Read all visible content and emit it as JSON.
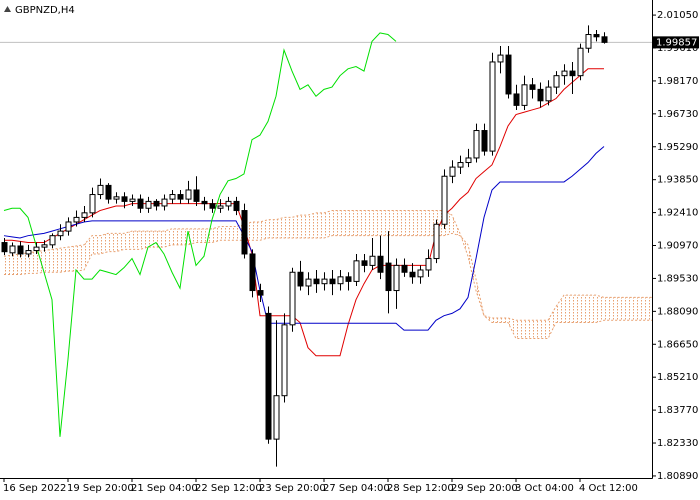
{
  "chart_data": {
    "type": "candlestick",
    "title": "GBPNZD,H4",
    "up_color": "#ffffff",
    "down_color": "#000000",
    "open": [
      1.911,
      1.9065,
      1.9095,
      1.906,
      1.9075,
      1.909,
      1.91,
      1.914,
      1.916,
      1.92,
      1.922,
      1.924,
      1.932,
      1.936,
      1.93,
      1.931,
      1.929,
      1.93,
      1.926,
      1.929,
      1.927,
      1.93,
      1.932,
      1.93,
      1.934,
      1.929,
      1.928,
      1.926,
      1.927,
      1.929,
      1.925,
      1.906,
      1.89,
      1.88,
      1.825,
      1.844,
      1.875,
      1.898,
      1.892,
      1.895,
      1.893,
      1.895,
      1.893,
      1.896,
      1.894,
      1.903,
      1.901,
      1.905,
      1.902,
      1.89,
      1.901,
      1.898,
      1.896,
      1.899,
      1.904,
      1.919,
      1.94,
      1.944,
      1.946,
      1.948,
      1.96,
      1.951,
      1.99,
      1.993,
      1.976,
      1.971,
      1.98,
      1.978,
      1.973,
      1.979,
      1.984,
      1.986,
      1.984,
      1.996,
      2.002,
      2.001
    ],
    "high": [
      1.913,
      1.911,
      1.9115,
      1.91,
      1.911,
      1.912,
      1.915,
      1.919,
      1.922,
      1.925,
      1.927,
      1.935,
      1.939,
      1.937,
      1.933,
      1.933,
      1.932,
      1.932,
      1.931,
      1.93,
      1.932,
      1.934,
      1.934,
      1.938,
      1.94,
      1.931,
      1.93,
      1.93,
      1.931,
      1.931,
      1.928,
      1.908,
      1.893,
      1.883,
      1.877,
      1.88,
      1.9,
      1.903,
      1.898,
      1.899,
      1.898,
      1.899,
      1.899,
      1.898,
      1.906,
      1.906,
      1.913,
      1.914,
      1.916,
      1.904,
      1.904,
      1.902,
      1.901,
      1.908,
      1.921,
      1.943,
      1.947,
      1.949,
      1.952,
      1.963,
      1.963,
      1.994,
      1.997,
      1.997,
      1.98,
      1.984,
      1.983,
      1.981,
      1.982,
      1.986,
      1.989,
      1.99,
      1.998,
      2.006,
      2.004,
      2.003
    ],
    "low": [
      1.9055,
      1.905,
      1.9045,
      1.9045,
      1.906,
      1.907,
      1.9085,
      1.912,
      1.914,
      1.918,
      1.92,
      1.922,
      1.93,
      1.928,
      1.928,
      1.926,
      1.927,
      1.924,
      1.924,
      1.925,
      1.925,
      1.928,
      1.928,
      1.928,
      1.927,
      1.925,
      1.924,
      1.924,
      1.925,
      1.923,
      1.904,
      1.887,
      1.885,
      1.823,
      1.813,
      1.841,
      1.872,
      1.89,
      1.888,
      1.889,
      1.89,
      1.888,
      1.89,
      1.89,
      1.892,
      1.898,
      1.899,
      1.895,
      1.88,
      1.882,
      1.896,
      1.893,
      1.893,
      1.896,
      1.902,
      1.917,
      1.937,
      1.941,
      1.944,
      1.946,
      1.949,
      1.949,
      1.985,
      1.974,
      1.969,
      1.969,
      1.974,
      1.97,
      1.971,
      1.976,
      1.98,
      1.976,
      1.982,
      1.994,
      1.999,
      1.998
    ],
    "close": [
      1.907,
      1.9095,
      1.906,
      1.9075,
      1.909,
      1.91,
      1.914,
      1.916,
      1.92,
      1.922,
      1.924,
      1.932,
      1.936,
      1.93,
      1.931,
      1.929,
      1.93,
      1.926,
      1.929,
      1.927,
      1.93,
      1.932,
      1.93,
      1.934,
      1.929,
      1.928,
      1.926,
      1.927,
      1.929,
      1.925,
      1.906,
      1.89,
      1.888,
      1.825,
      1.844,
      1.875,
      1.898,
      1.892,
      1.895,
      1.893,
      1.895,
      1.893,
      1.896,
      1.894,
      1.903,
      1.901,
      1.905,
      1.898,
      1.89,
      1.901,
      1.898,
      1.896,
      1.899,
      1.904,
      1.919,
      1.94,
      1.944,
      1.946,
      1.948,
      1.96,
      1.951,
      1.99,
      1.993,
      1.976,
      1.971,
      1.98,
      1.978,
      1.973,
      1.979,
      1.984,
      1.986,
      1.984,
      1.996,
      2.002,
      2.001,
      1.99857
    ],
    "lines": [
      {
        "color": "#e00000",
        "values": [
          1.912,
          1.912,
          1.9115,
          1.911,
          1.911,
          1.911,
          1.913,
          1.915,
          1.917,
          1.919,
          1.921,
          1.923,
          1.925,
          1.926,
          1.927,
          1.927,
          1.928,
          1.928,
          1.928,
          1.928,
          1.928,
          1.928,
          1.928,
          1.928,
          1.928,
          1.928,
          1.928,
          1.928,
          1.928,
          1.928,
          1.918,
          1.906,
          1.879,
          1.879,
          1.879,
          1.879,
          1.879,
          1.876,
          1.865,
          1.8615,
          1.8615,
          1.8615,
          1.8615,
          1.875,
          1.886,
          1.893,
          1.899,
          1.901,
          1.901,
          1.901,
          1.901,
          1.901,
          1.901,
          1.901,
          1.915,
          1.923,
          1.926,
          1.93,
          1.933,
          1.939,
          1.942,
          1.945,
          1.953,
          1.962,
          1.967,
          1.968,
          1.969,
          1.97,
          1.972,
          1.974,
          1.978,
          1.981,
          1.984,
          1.987,
          1.987,
          1.987,
          null,
          null,
          null,
          null,
          null,
          null
        ]
      },
      {
        "color": "#0000c8",
        "values": [
          1.914,
          1.9135,
          1.913,
          1.914,
          1.9145,
          1.915,
          1.916,
          1.917,
          1.918,
          1.919,
          1.92,
          1.9205,
          1.9205,
          1.9205,
          1.9205,
          1.9205,
          1.9205,
          1.9205,
          1.9205,
          1.9205,
          1.9205,
          1.9205,
          1.9205,
          1.9205,
          1.9205,
          1.9205,
          1.9205,
          1.9205,
          1.9205,
          1.9205,
          1.914,
          1.907,
          1.89,
          1.8757,
          1.8757,
          1.8757,
          1.8757,
          1.8757,
          1.8757,
          1.8757,
          1.8757,
          1.8757,
          1.8757,
          1.8757,
          1.8757,
          1.8757,
          1.8757,
          1.8757,
          1.8757,
          1.8757,
          1.8727,
          1.8727,
          1.8727,
          1.8727,
          1.877,
          1.879,
          1.88,
          1.882,
          1.887,
          1.904,
          1.922,
          1.934,
          1.9375,
          1.9375,
          1.9375,
          1.9375,
          1.9375,
          1.9375,
          1.9375,
          1.9375,
          1.9375,
          1.94,
          1.943,
          1.946,
          1.95,
          1.953,
          null,
          null,
          null,
          null,
          null,
          null
        ]
      },
      {
        "color": "#00e000",
        "values": [
          1.925,
          1.926,
          1.926,
          1.922,
          1.91,
          1.898,
          1.886,
          1.826,
          1.86,
          1.899,
          1.895,
          1.895,
          1.899,
          1.898,
          1.897,
          1.9,
          1.904,
          1.897,
          1.909,
          1.911,
          1.906,
          1.898,
          1.891,
          1.916,
          1.901,
          1.905,
          1.921,
          1.932,
          1.938,
          1.939,
          1.941,
          1.956,
          1.958,
          1.964,
          1.975,
          1.9952,
          1.986,
          1.978,
          1.98,
          1.975,
          1.978,
          1.979,
          1.984,
          1.987,
          1.988,
          1.986,
          1.999,
          2.0027,
          2.002,
          1.999,
          null,
          null,
          null,
          null,
          null,
          null,
          null,
          null,
          null,
          null,
          null,
          null,
          null,
          null,
          null,
          null,
          null,
          null,
          null,
          null,
          null,
          null,
          null,
          null,
          null,
          null,
          null,
          null,
          null,
          null,
          null,
          null
        ]
      }
    ],
    "cloud": {
      "color": "#e8a070",
      "span_a": [
        1.905,
        1.9055,
        1.906,
        1.9065,
        1.907,
        1.9075,
        1.908,
        1.9085,
        1.909,
        1.9095,
        1.91,
        1.914,
        1.914,
        1.915,
        1.915,
        1.915,
        1.916,
        1.916,
        1.916,
        1.916,
        1.916,
        1.917,
        1.917,
        1.917,
        1.917,
        1.917,
        1.917,
        1.918,
        1.918,
        1.918,
        1.919,
        1.92,
        1.92,
        1.921,
        1.921,
        1.922,
        1.922,
        1.923,
        1.923,
        1.924,
        1.924,
        1.925,
        1.925,
        1.925,
        1.925,
        1.925,
        1.925,
        1.925,
        1.925,
        1.925,
        1.925,
        1.925,
        1.925,
        1.925,
        1.925,
        1.925,
        1.923,
        1.915,
        1.905,
        1.89,
        1.879,
        1.878,
        1.878,
        1.878,
        1.877,
        1.877,
        1.877,
        1.877,
        1.877,
        1.883,
        1.888,
        1.888,
        1.888,
        1.888,
        1.888,
        1.887,
        1.887,
        1.887,
        1.887,
        1.887,
        1.887,
        1.887
      ],
      "span_b": [
        1.897,
        1.897,
        1.897,
        1.8975,
        1.8975,
        1.898,
        1.898,
        1.898,
        1.8985,
        1.8985,
        1.899,
        1.906,
        1.906,
        1.907,
        1.907,
        1.908,
        1.908,
        1.908,
        1.909,
        1.909,
        1.909,
        1.91,
        1.91,
        1.91,
        1.911,
        1.911,
        1.911,
        1.912,
        1.912,
        1.912,
        1.912,
        1.912,
        1.912,
        1.913,
        1.913,
        1.913,
        1.913,
        1.913,
        1.913,
        1.913,
        1.913,
        1.914,
        1.914,
        1.914,
        1.914,
        1.914,
        1.914,
        1.914,
        1.914,
        1.914,
        1.914,
        1.914,
        1.914,
        1.914,
        1.914,
        1.914,
        1.915,
        1.914,
        1.91,
        1.895,
        1.879,
        1.876,
        1.876,
        1.876,
        1.869,
        1.869,
        1.869,
        1.869,
        1.869,
        1.876,
        1.876,
        1.876,
        1.876,
        1.876,
        1.876,
        1.877,
        1.877,
        1.877,
        1.877,
        1.877,
        1.877,
        1.877
      ]
    },
    "current_price": 1.99857,
    "xlim": [
      -0.5,
      81
    ],
    "ylim": [
      1.808,
      2.0171
    ],
    "xticks": [
      {
        "value": 0,
        "label": "16 Sep 2022"
      },
      {
        "value": 8,
        "label": "19 Sep 20:00"
      },
      {
        "value": 16,
        "label": "21 Sep 04:00"
      },
      {
        "value": 24,
        "label": "22 Sep 12:00"
      },
      {
        "value": 32,
        "label": "23 Sep 20:00"
      },
      {
        "value": 40,
        "label": "27 Sep 04:00"
      },
      {
        "value": 48,
        "label": "28 Sep 12:00"
      },
      {
        "value": 56,
        "label": "29 Sep 20:00"
      },
      {
        "value": 64,
        "label": "3 Oct 04:00"
      },
      {
        "value": 72,
        "label": "4 Oct 12:00"
      }
    ],
    "yticks": [
      {
        "value": 2.0105,
        "label": "2.01050"
      },
      {
        "value": 1.9961,
        "label": "1.99610"
      },
      {
        "value": 1.9817,
        "label": "1.98170"
      },
      {
        "value": 1.9673,
        "label": "1.96730"
      },
      {
        "value": 1.9529,
        "label": "1.95290"
      },
      {
        "value": 1.9385,
        "label": "1.93850"
      },
      {
        "value": 1.9241,
        "label": "1.92410"
      },
      {
        "value": 1.9097,
        "label": "1.90970"
      },
      {
        "value": 1.8953,
        "label": "1.89530"
      },
      {
        "value": 1.8809,
        "label": "1.88090"
      },
      {
        "value": 1.8665,
        "label": "1.86650"
      },
      {
        "value": 1.8521,
        "label": "1.85210"
      },
      {
        "value": 1.8377,
        "label": "1.83770"
      },
      {
        "value": 1.8233,
        "label": "1.82330"
      },
      {
        "value": 1.8089,
        "label": "1.80890"
      }
    ]
  }
}
